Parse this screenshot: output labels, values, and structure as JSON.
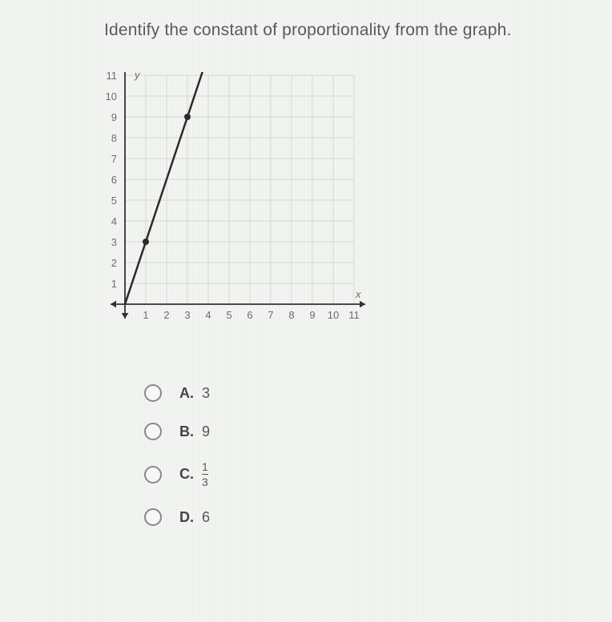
{
  "question": "Identify the constant of proportionality from the graph.",
  "chart": {
    "type": "line",
    "background_color": "#f2f4f1",
    "grid_color": "#d6d8d4",
    "axis_color": "#333333",
    "label_color": "#6b6b6b",
    "label_fontsize": 13,
    "x_axis_label": "x",
    "y_axis_label": "y",
    "xlim": [
      0,
      11
    ],
    "ylim": [
      0,
      11
    ],
    "xtick_step": 1,
    "ytick_step": 1,
    "x_tick_labels": [
      "1",
      "2",
      "3",
      "4",
      "5",
      "6",
      "7",
      "8",
      "9",
      "10",
      "11"
    ],
    "y_tick_labels": [
      "1",
      "2",
      "3",
      "4",
      "5",
      "6",
      "7",
      "8",
      "9",
      "10",
      "11"
    ],
    "line": {
      "points": [
        [
          0,
          0
        ],
        [
          1,
          3
        ],
        [
          3,
          9
        ],
        [
          3.8,
          11.4
        ]
      ],
      "marked_points": [
        [
          1,
          3
        ],
        [
          3,
          9
        ]
      ],
      "line_color": "#2a2a2a",
      "line_width": 2.5,
      "marker_color": "#2a2a2a",
      "marker_radius": 4
    },
    "arrow_size": 7
  },
  "options": [
    {
      "letter": "A.",
      "value": "3",
      "is_fraction": false
    },
    {
      "letter": "B.",
      "value": "9",
      "is_fraction": false
    },
    {
      "letter": "C.",
      "num": "1",
      "den": "3",
      "is_fraction": true
    },
    {
      "letter": "D.",
      "value": "6",
      "is_fraction": false
    }
  ]
}
